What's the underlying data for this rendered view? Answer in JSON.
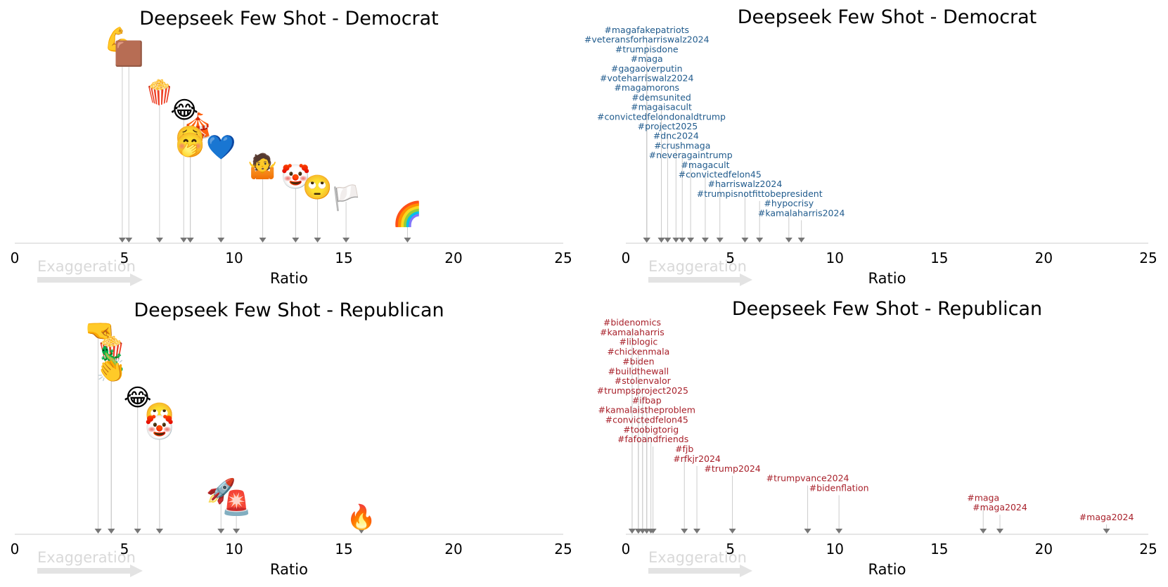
{
  "chart_data": [
    {
      "id": "emoji-dem",
      "type": "scatter",
      "title": "Deepseek Few Shot - Democrat",
      "xlabel": "Ratio",
      "annotation": "Exaggeration",
      "xlim": [
        0,
        25
      ],
      "xticks": [
        "0",
        "5",
        "10",
        "15",
        "20",
        "25"
      ],
      "points": [
        {
          "x": 4.9,
          "label": "💪"
        },
        {
          "x": 5.2,
          "label": "🟫"
        },
        {
          "x": 6.6,
          "label": "🍿"
        },
        {
          "x": 7.7,
          "label": "😂"
        },
        {
          "x": 8.0,
          "label": "🎪"
        },
        {
          "x": 8.0,
          "label": "🤮"
        },
        {
          "x": 8.0,
          "label": "🤭"
        },
        {
          "x": 9.4,
          "label": "💙"
        },
        {
          "x": 11.3,
          "label": "🤷"
        },
        {
          "x": 12.8,
          "label": "🤡"
        },
        {
          "x": 13.8,
          "label": "🙄"
        },
        {
          "x": 15.1,
          "label": "🏳️"
        },
        {
          "x": 17.9,
          "label": "🌈"
        }
      ]
    },
    {
      "id": "hashtag-dem",
      "type": "scatter",
      "title": "Deepseek Few Shot - Democrat",
      "xlabel": "Ratio",
      "annotation": "Exaggeration",
      "xlim": [
        0,
        25
      ],
      "xticks": [
        "0",
        "5",
        "10",
        "15",
        "20",
        "25"
      ],
      "color": "#1f5a8c",
      "points": [
        {
          "x": 1.0,
          "label": "#magafakepatriots"
        },
        {
          "x": 1.0,
          "label": "#veteransforharriswalz2024"
        },
        {
          "x": 1.0,
          "label": "#trumpisdone"
        },
        {
          "x": 1.0,
          "label": "#maga"
        },
        {
          "x": 1.0,
          "label": "#gagaoverputin"
        },
        {
          "x": 1.0,
          "label": "#voteharriswalz2024"
        },
        {
          "x": 1.0,
          "label": "#magamorons"
        },
        {
          "x": 1.7,
          "label": "#demsunited"
        },
        {
          "x": 1.7,
          "label": "#magaisacult"
        },
        {
          "x": 1.7,
          "label": "#convictedfelondonaldtrump"
        },
        {
          "x": 2.0,
          "label": "#project2025"
        },
        {
          "x": 2.4,
          "label": "#dnc2024"
        },
        {
          "x": 2.7,
          "label": "#crushmaga"
        },
        {
          "x": 3.1,
          "label": "#neveragaintrump"
        },
        {
          "x": 3.8,
          "label": "#magacult"
        },
        {
          "x": 4.5,
          "label": "#convictedfelon45"
        },
        {
          "x": 5.7,
          "label": "#harriswalz2024"
        },
        {
          "x": 6.4,
          "label": "#trumpisnotfittobepresident"
        },
        {
          "x": 7.8,
          "label": "#hypocrisy"
        },
        {
          "x": 8.4,
          "label": "#kamalaharris2024"
        }
      ]
    },
    {
      "id": "emoji-rep",
      "type": "scatter",
      "title": "Deepseek Few Shot - Republican",
      "xlabel": "Ratio",
      "annotation": "Exaggeration",
      "xlim": [
        0,
        25
      ],
      "xticks": [
        "0",
        "5",
        "10",
        "15",
        "20",
        "25"
      ],
      "points": [
        {
          "x": 3.8,
          "label": "🤜"
        },
        {
          "x": 4.4,
          "label": "🍿"
        },
        {
          "x": 4.4,
          "label": "🦎"
        },
        {
          "x": 4.4,
          "label": "👏"
        },
        {
          "x": 5.6,
          "label": "😂"
        },
        {
          "x": 6.6,
          "label": "🙄"
        },
        {
          "x": 6.6,
          "label": "🤡"
        },
        {
          "x": 9.4,
          "label": "🚀"
        },
        {
          "x": 10.1,
          "label": "🚨"
        },
        {
          "x": 15.8,
          "label": "🔥"
        }
      ]
    },
    {
      "id": "hashtag-rep",
      "type": "scatter",
      "title": "Deepseek Few Shot - Republican",
      "xlabel": "Ratio",
      "annotation": "Exaggeration",
      "xlim": [
        0,
        25
      ],
      "xticks": [
        "0",
        "5",
        "10",
        "15",
        "20",
        "25"
      ],
      "color": "#a8202a",
      "points": [
        {
          "x": 0.3,
          "label": "#bidenomics"
        },
        {
          "x": 0.3,
          "label": "#kamalaharris"
        },
        {
          "x": 0.6,
          "label": "#liblogic"
        },
        {
          "x": 0.6,
          "label": "#chickenmala"
        },
        {
          "x": 0.6,
          "label": "#biden"
        },
        {
          "x": 0.6,
          "label": "#buildthewall"
        },
        {
          "x": 0.8,
          "label": "#stolenvalor"
        },
        {
          "x": 0.8,
          "label": "#trumpsproject2025"
        },
        {
          "x": 1.0,
          "label": "#ifbap"
        },
        {
          "x": 1.0,
          "label": "#kamalaistheproblem"
        },
        {
          "x": 1.0,
          "label": "#convictedfelon45"
        },
        {
          "x": 1.2,
          "label": "#toobigtorig"
        },
        {
          "x": 1.3,
          "label": "#fafoandfriends"
        },
        {
          "x": 2.8,
          "label": "#fjb"
        },
        {
          "x": 3.4,
          "label": "#rfkjr2024"
        },
        {
          "x": 5.1,
          "label": "#trump2024"
        },
        {
          "x": 8.7,
          "label": "#trumpvance2024"
        },
        {
          "x": 10.2,
          "label": "#bidenflation"
        },
        {
          "x": 17.1,
          "label": "#maga"
        },
        {
          "x": 17.9,
          "label": "#maga2024"
        },
        {
          "x": 23.0,
          "label": "#maga2024"
        }
      ]
    }
  ]
}
